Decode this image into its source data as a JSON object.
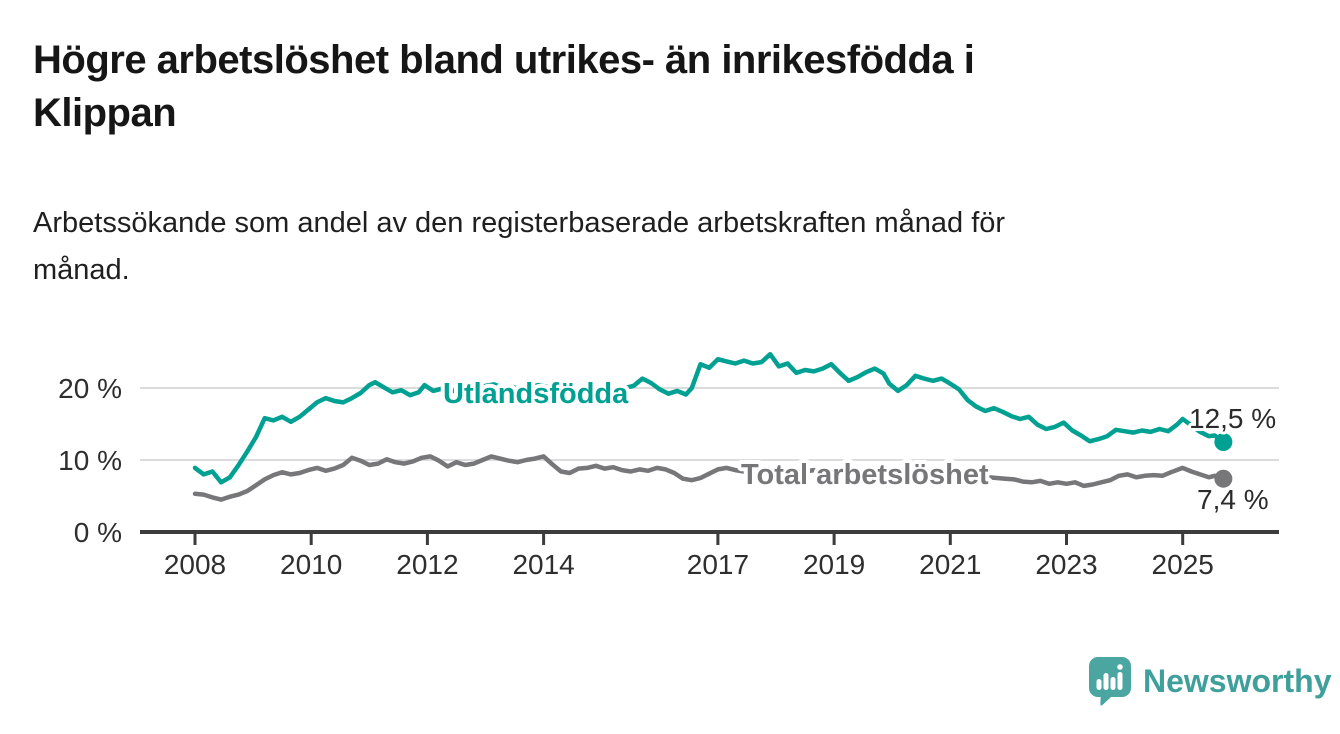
{
  "header": {
    "title_lines": [
      "Högre arbetslöshet bland utrikes- än inrikesfödda i",
      "Klippan"
    ],
    "subtitle_lines": [
      "Arbetssökande som andel av den registerbaserade arbetskraften månad för",
      "månad."
    ]
  },
  "footer": {
    "logo_text": "Newsworthy",
    "logo_color": "#3f9f9b",
    "logo_icon": "speech-bubble-with-bar-chart-and-exclamation"
  },
  "chart_data": {
    "type": "line",
    "title": "Högre arbetslöshet bland utrikes- än inrikesfödda i Klippan",
    "subtitle": "Arbetssökande som andel av den registerbaserade arbetskraften månad för månad.",
    "unit": "%",
    "grid": "horizontal-only",
    "legend_position": "inline-labels-on-lines",
    "ylim": [
      0,
      27
    ],
    "xlim_years": [
      2007.05,
      2026.65
    ],
    "colors": {
      "grid": "#dcdcdc",
      "axis": "#3c3c3c",
      "tick_text": "#2e2e2e",
      "value_label_text": "#2b2b2b"
    },
    "y_ticks": [
      {
        "value": 0,
        "label": "0 %"
      },
      {
        "value": 10,
        "label": "10 %"
      },
      {
        "value": 20,
        "label": "20 %"
      }
    ],
    "x_ticks": [
      {
        "year": 2008,
        "label": "2008"
      },
      {
        "year": 2010,
        "label": "2010"
      },
      {
        "year": 2012,
        "label": "2012"
      },
      {
        "year": 2014,
        "label": "2014"
      },
      {
        "year": 2017,
        "label": "2017"
      },
      {
        "year": 2019,
        "label": "2019"
      },
      {
        "year": 2021,
        "label": "2021"
      },
      {
        "year": 2023,
        "label": "2023"
      },
      {
        "year": 2025,
        "label": "2025"
      }
    ],
    "series": [
      {
        "name": "Utlandsfödda",
        "color": "#00a192",
        "end_value": 12.5,
        "end_label": "12,5 %",
        "points": [
          [
            2008.0,
            8.9
          ],
          [
            2008.15,
            8.0
          ],
          [
            2008.3,
            8.4
          ],
          [
            2008.45,
            6.9
          ],
          [
            2008.6,
            7.6
          ],
          [
            2008.75,
            9.3
          ],
          [
            2008.9,
            11.2
          ],
          [
            2009.05,
            13.2
          ],
          [
            2009.2,
            15.8
          ],
          [
            2009.35,
            15.5
          ],
          [
            2009.5,
            16.0
          ],
          [
            2009.65,
            15.3
          ],
          [
            2009.8,
            16.0
          ],
          [
            2009.95,
            17.0
          ],
          [
            2010.1,
            18.0
          ],
          [
            2010.25,
            18.6
          ],
          [
            2010.4,
            18.2
          ],
          [
            2010.55,
            18.0
          ],
          [
            2010.7,
            18.6
          ],
          [
            2010.85,
            19.3
          ],
          [
            2011.0,
            20.4
          ],
          [
            2011.1,
            20.8
          ],
          [
            2011.25,
            20.1
          ],
          [
            2011.4,
            19.4
          ],
          [
            2011.55,
            19.7
          ],
          [
            2011.7,
            19.0
          ],
          [
            2011.85,
            19.4
          ],
          [
            2011.95,
            20.4
          ],
          [
            2012.1,
            19.6
          ],
          [
            2012.25,
            19.9
          ],
          [
            2012.4,
            19.5
          ],
          [
            2012.55,
            19.8
          ],
          [
            2012.7,
            20.1
          ],
          [
            2012.85,
            19.7
          ],
          [
            2013.0,
            20.3
          ],
          [
            2013.15,
            20.5
          ],
          [
            2013.3,
            20.0
          ],
          [
            2013.45,
            20.2
          ],
          [
            2013.6,
            19.8
          ],
          [
            2013.75,
            20.0
          ],
          [
            2013.9,
            20.4
          ],
          [
            2014.05,
            20.2
          ],
          [
            2014.2,
            19.7
          ],
          [
            2014.35,
            19.9
          ],
          [
            2014.5,
            19.6
          ],
          [
            2014.65,
            19.8
          ],
          [
            2014.8,
            19.5
          ],
          [
            2014.95,
            19.9
          ],
          [
            2015.1,
            19.6
          ],
          [
            2015.25,
            19.8
          ],
          [
            2015.4,
            20.0
          ],
          [
            2015.55,
            20.3
          ],
          [
            2015.7,
            21.3
          ],
          [
            2015.85,
            20.7
          ],
          [
            2016.0,
            19.8
          ],
          [
            2016.15,
            19.2
          ],
          [
            2016.3,
            19.6
          ],
          [
            2016.45,
            19.1
          ],
          [
            2016.55,
            20.0
          ],
          [
            2016.7,
            23.3
          ],
          [
            2016.85,
            22.8
          ],
          [
            2017.0,
            24.0
          ],
          [
            2017.15,
            23.7
          ],
          [
            2017.3,
            23.4
          ],
          [
            2017.45,
            23.8
          ],
          [
            2017.6,
            23.4
          ],
          [
            2017.75,
            23.6
          ],
          [
            2017.9,
            24.7
          ],
          [
            2018.05,
            23.0
          ],
          [
            2018.2,
            23.4
          ],
          [
            2018.35,
            22.1
          ],
          [
            2018.5,
            22.5
          ],
          [
            2018.65,
            22.3
          ],
          [
            2018.8,
            22.7
          ],
          [
            2018.95,
            23.3
          ],
          [
            2019.1,
            22.1
          ],
          [
            2019.25,
            21.0
          ],
          [
            2019.4,
            21.5
          ],
          [
            2019.55,
            22.2
          ],
          [
            2019.7,
            22.7
          ],
          [
            2019.85,
            22.0
          ],
          [
            2019.95,
            20.6
          ],
          [
            2020.1,
            19.6
          ],
          [
            2020.25,
            20.4
          ],
          [
            2020.4,
            21.7
          ],
          [
            2020.55,
            21.3
          ],
          [
            2020.7,
            21.0
          ],
          [
            2020.85,
            21.3
          ],
          [
            2021.0,
            20.6
          ],
          [
            2021.15,
            19.8
          ],
          [
            2021.3,
            18.3
          ],
          [
            2021.45,
            17.4
          ],
          [
            2021.6,
            16.8
          ],
          [
            2021.75,
            17.2
          ],
          [
            2021.9,
            16.7
          ],
          [
            2022.05,
            16.1
          ],
          [
            2022.2,
            15.7
          ],
          [
            2022.35,
            16.0
          ],
          [
            2022.5,
            14.9
          ],
          [
            2022.65,
            14.3
          ],
          [
            2022.8,
            14.6
          ],
          [
            2022.95,
            15.2
          ],
          [
            2023.1,
            14.1
          ],
          [
            2023.25,
            13.4
          ],
          [
            2023.4,
            12.6
          ],
          [
            2023.55,
            12.9
          ],
          [
            2023.7,
            13.3
          ],
          [
            2023.85,
            14.2
          ],
          [
            2024.0,
            14.0
          ],
          [
            2024.15,
            13.8
          ],
          [
            2024.3,
            14.1
          ],
          [
            2024.45,
            13.9
          ],
          [
            2024.6,
            14.3
          ],
          [
            2024.75,
            14.0
          ],
          [
            2024.9,
            14.9
          ],
          [
            2025.0,
            15.7
          ],
          [
            2025.15,
            14.8
          ],
          [
            2025.3,
            13.9
          ],
          [
            2025.45,
            13.3
          ],
          [
            2025.55,
            13.4
          ],
          [
            2025.7,
            12.5
          ]
        ]
      },
      {
        "name": "Total arbetslöshet",
        "color": "#77777a",
        "end_value": 7.4,
        "end_label": "7,4 %",
        "points": [
          [
            2008.0,
            5.3
          ],
          [
            2008.15,
            5.2
          ],
          [
            2008.3,
            4.8
          ],
          [
            2008.45,
            4.5
          ],
          [
            2008.6,
            4.9
          ],
          [
            2008.75,
            5.2
          ],
          [
            2008.9,
            5.7
          ],
          [
            2009.05,
            6.5
          ],
          [
            2009.2,
            7.3
          ],
          [
            2009.35,
            7.9
          ],
          [
            2009.5,
            8.3
          ],
          [
            2009.65,
            8.0
          ],
          [
            2009.8,
            8.2
          ],
          [
            2009.95,
            8.6
          ],
          [
            2010.1,
            8.9
          ],
          [
            2010.25,
            8.5
          ],
          [
            2010.4,
            8.8
          ],
          [
            2010.55,
            9.3
          ],
          [
            2010.7,
            10.3
          ],
          [
            2010.85,
            9.9
          ],
          [
            2011.0,
            9.3
          ],
          [
            2011.15,
            9.5
          ],
          [
            2011.3,
            10.1
          ],
          [
            2011.45,
            9.7
          ],
          [
            2011.6,
            9.5
          ],
          [
            2011.75,
            9.8
          ],
          [
            2011.9,
            10.3
          ],
          [
            2012.05,
            10.5
          ],
          [
            2012.2,
            9.9
          ],
          [
            2012.35,
            9.1
          ],
          [
            2012.5,
            9.7
          ],
          [
            2012.65,
            9.3
          ],
          [
            2012.8,
            9.5
          ],
          [
            2012.95,
            10.0
          ],
          [
            2013.1,
            10.5
          ],
          [
            2013.25,
            10.2
          ],
          [
            2013.4,
            9.9
          ],
          [
            2013.55,
            9.7
          ],
          [
            2013.7,
            10.0
          ],
          [
            2013.85,
            10.2
          ],
          [
            2014.0,
            10.5
          ],
          [
            2014.15,
            9.4
          ],
          [
            2014.3,
            8.4
          ],
          [
            2014.45,
            8.2
          ],
          [
            2014.6,
            8.8
          ],
          [
            2014.75,
            8.9
          ],
          [
            2014.9,
            9.2
          ],
          [
            2015.05,
            8.8
          ],
          [
            2015.2,
            9.0
          ],
          [
            2015.35,
            8.6
          ],
          [
            2015.5,
            8.4
          ],
          [
            2015.65,
            8.7
          ],
          [
            2015.8,
            8.5
          ],
          [
            2015.95,
            8.9
          ],
          [
            2016.1,
            8.7
          ],
          [
            2016.25,
            8.2
          ],
          [
            2016.4,
            7.4
          ],
          [
            2016.55,
            7.2
          ],
          [
            2016.7,
            7.5
          ],
          [
            2016.85,
            8.1
          ],
          [
            2017.0,
            8.7
          ],
          [
            2017.15,
            8.9
          ],
          [
            2017.3,
            8.6
          ],
          [
            2017.45,
            8.4
          ],
          [
            2017.6,
            8.3
          ],
          [
            2017.75,
            8.5
          ],
          [
            2017.9,
            8.7
          ],
          [
            2018.05,
            8.8
          ],
          [
            2018.2,
            8.5
          ],
          [
            2018.35,
            8.3
          ],
          [
            2018.5,
            8.4
          ],
          [
            2018.65,
            8.6
          ],
          [
            2018.8,
            8.4
          ],
          [
            2018.95,
            8.2
          ],
          [
            2019.1,
            8.0
          ],
          [
            2019.25,
            8.1
          ],
          [
            2019.4,
            8.3
          ],
          [
            2019.55,
            8.1
          ],
          [
            2019.7,
            8.0
          ],
          [
            2019.85,
            8.1
          ],
          [
            2020.0,
            8.3
          ],
          [
            2020.15,
            8.6
          ],
          [
            2020.3,
            9.0
          ],
          [
            2020.45,
            8.8
          ],
          [
            2020.6,
            8.6
          ],
          [
            2020.75,
            8.5
          ],
          [
            2020.9,
            8.4
          ],
          [
            2021.05,
            8.2
          ],
          [
            2021.2,
            8.0
          ],
          [
            2021.35,
            7.9
          ],
          [
            2021.5,
            7.7
          ],
          [
            2021.65,
            7.6
          ],
          [
            2021.8,
            7.5
          ],
          [
            2021.95,
            7.4
          ],
          [
            2022.1,
            7.3
          ],
          [
            2022.25,
            7.0
          ],
          [
            2022.4,
            6.9
          ],
          [
            2022.55,
            7.1
          ],
          [
            2022.7,
            6.7
          ],
          [
            2022.85,
            6.9
          ],
          [
            2023.0,
            6.7
          ],
          [
            2023.15,
            6.9
          ],
          [
            2023.3,
            6.4
          ],
          [
            2023.45,
            6.6
          ],
          [
            2023.6,
            6.9
          ],
          [
            2023.75,
            7.2
          ],
          [
            2023.9,
            7.8
          ],
          [
            2024.05,
            8.0
          ],
          [
            2024.2,
            7.6
          ],
          [
            2024.35,
            7.8
          ],
          [
            2024.5,
            7.9
          ],
          [
            2024.65,
            7.8
          ],
          [
            2024.8,
            8.3
          ],
          [
            2025.0,
            8.9
          ],
          [
            2025.15,
            8.4
          ],
          [
            2025.3,
            8.0
          ],
          [
            2025.45,
            7.6
          ],
          [
            2025.55,
            7.8
          ],
          [
            2025.7,
            7.4
          ]
        ]
      }
    ]
  }
}
